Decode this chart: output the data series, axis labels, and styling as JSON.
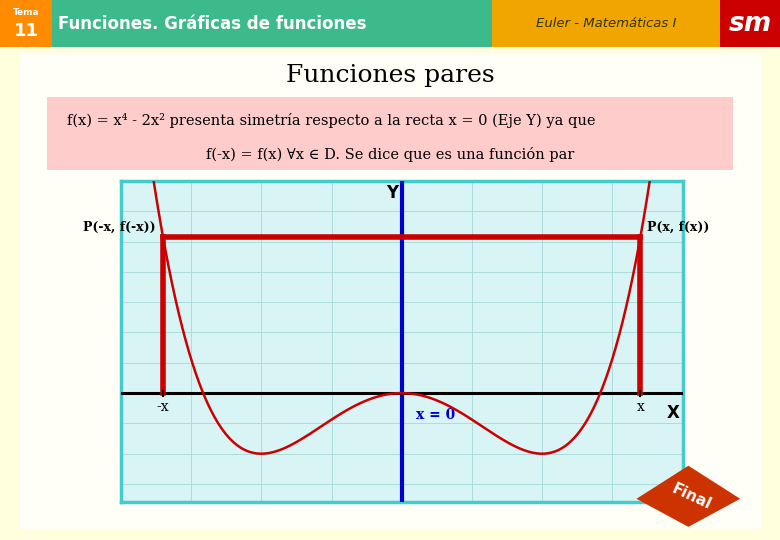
{
  "header_bg": "#3dba8c",
  "header_orange_bg": "#f0a500",
  "header_sm_bg": "#cc0000",
  "tema_bg": "#ff8c00",
  "page_bg": "#ffffdd",
  "title": "Funciones pares",
  "title_fontsize": 18,
  "header_title": "Funciones. Gráficas de funciones",
  "header_subtitle": "Euler - Matemáticas I",
  "tema_num": "11",
  "tema_label": "Tema",
  "text_box_text_line1": "f(x) = x⁴ - 2x² presenta simetría respecto a la recta x = 0 (Eje Y) ya que",
  "text_box_text_line2": "f(-x) = f(x) ∀x ∈ D. Se dice que es una función par",
  "text_box_bg": "#ffcccc",
  "text_box_border": "#cc9999",
  "graph_bg": "#d8f4f4",
  "graph_border": "#44cccc",
  "curve_color": "#cc0000",
  "yaxis_line_color": "#0000cc",
  "xaxis_color": "#000000",
  "x_val": 1.35,
  "final_bg": "#cc3300",
  "final_text": "Final",
  "label_P_left": "P(-x, f(-x))",
  "label_P_right": "P(x, f(x))",
  "label_x_left": "-x",
  "label_x_right": "x",
  "label_x0": "x = 0",
  "label_X": "X",
  "label_Y": "Y",
  "xlim": [
    -2.0,
    2.0
  ],
  "ylim": [
    -1.8,
    3.5
  ]
}
